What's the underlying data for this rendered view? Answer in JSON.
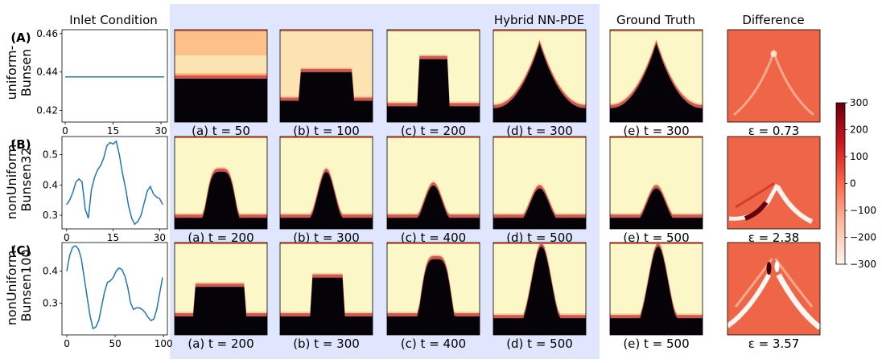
{
  "figure": {
    "headers": {
      "inlet": "Inlet Condition",
      "hybrid": "Hybrid NN-PDE",
      "truth": "Ground Truth",
      "diff": "Difference"
    },
    "highlight_color": "#dfe6fd",
    "line_color": "#1f77b4"
  },
  "colorbar": {
    "ticks": [
      "300",
      "200",
      "100",
      "0",
      "−100",
      "−200",
      "−300"
    ],
    "colormap": "Reds"
  },
  "rows": [
    {
      "letter": "(A)",
      "name_line1": "uniform-",
      "name_line2": "Bunsen",
      "frames": [
        "(a) t = 50",
        "(b) t = 100",
        "(c) t = 200",
        "(d) t = 300"
      ],
      "truth": "(e) t = 300",
      "error": "ε = 0.73"
    },
    {
      "letter": "(B)",
      "name_line1": "nonUniform-",
      "name_line2": "Bunsen32",
      "frames": [
        "(a) t = 200",
        "(b) t = 300",
        "(c) t = 400",
        "(d) t = 500"
      ],
      "truth": "(e) t = 500",
      "error": "ε = 2.38"
    },
    {
      "letter": "(C)",
      "name_line1": "nonUniform-",
      "name_line2": "Bunsen100",
      "frames": [
        "(a) t = 200",
        "(b) t = 300",
        "(c) t = 400",
        "(d) t = 500"
      ],
      "truth": "(e) t = 500",
      "error": "ε = 3.57"
    }
  ],
  "chart_data": [
    {
      "type": "line",
      "x": [
        0,
        31
      ],
      "y": [
        0.4375,
        0.4375
      ],
      "xticks": [
        "0",
        "15",
        "30"
      ],
      "yticks": [
        "0.46",
        "0.44",
        "0.42"
      ],
      "xlim": [
        -1,
        32
      ],
      "ylim": [
        0.414,
        0.462
      ]
    },
    {
      "type": "line",
      "x": [
        0,
        1,
        2,
        3,
        4,
        5,
        6,
        7,
        8,
        9,
        10,
        11,
        12,
        13,
        14,
        15,
        16,
        17,
        18,
        19,
        20,
        21,
        22,
        23,
        24,
        25,
        26,
        27,
        28,
        29,
        30,
        31
      ],
      "y": [
        0.335,
        0.35,
        0.375,
        0.41,
        0.42,
        0.41,
        0.32,
        0.29,
        0.385,
        0.425,
        0.45,
        0.465,
        0.49,
        0.53,
        0.54,
        0.535,
        0.545,
        0.5,
        0.44,
        0.39,
        0.33,
        0.29,
        0.27,
        0.28,
        0.3,
        0.34,
        0.38,
        0.395,
        0.37,
        0.36,
        0.355,
        0.335
      ],
      "xticks": [
        "0",
        "15",
        "30"
      ],
      "yticks": [
        "0.5",
        "0.4",
        "0.3"
      ],
      "xlim": [
        -1.5,
        32.5
      ],
      "ylim": [
        0.255,
        0.56
      ]
    },
    {
      "type": "line",
      "x": [
        0,
        3,
        6,
        9,
        12,
        15,
        18,
        21,
        24,
        27,
        30,
        33,
        36,
        39,
        42,
        45,
        48,
        51,
        54,
        57,
        60,
        63,
        66,
        69,
        72,
        75,
        78,
        81,
        84,
        87,
        90,
        93,
        96,
        99
      ],
      "y": [
        0.4,
        0.45,
        0.475,
        0.48,
        0.47,
        0.44,
        0.38,
        0.32,
        0.26,
        0.22,
        0.225,
        0.245,
        0.29,
        0.335,
        0.365,
        0.37,
        0.38,
        0.4,
        0.41,
        0.405,
        0.385,
        0.35,
        0.3,
        0.28,
        0.285,
        0.285,
        0.28,
        0.27,
        0.255,
        0.245,
        0.25,
        0.28,
        0.33,
        0.38
      ],
      "xticks": [
        "0",
        "50",
        "100"
      ],
      "yticks": [
        "0.4",
        "0.3"
      ],
      "xlim": [
        -5,
        104
      ],
      "ylim": [
        0.2,
        0.49
      ]
    }
  ]
}
